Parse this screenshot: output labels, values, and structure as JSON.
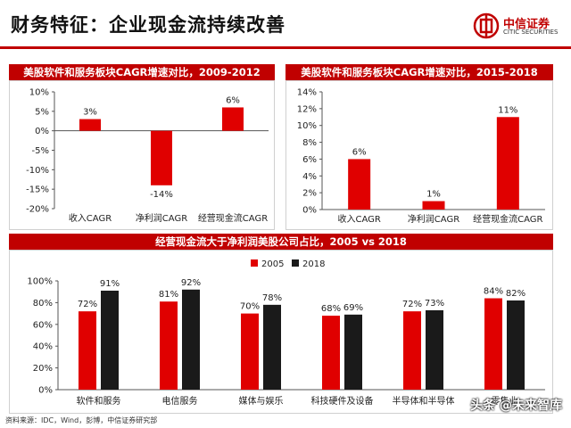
{
  "page": {
    "title": "财务特征：企业现金流持续改善",
    "source": "资料来源：IDC，Wind，彭博，中信证券研究部",
    "watermark": "头条 @未来智库"
  },
  "brand": {
    "name": "中信证券",
    "sub": "CITIC SECURITIES",
    "color": "#c00000"
  },
  "colors": {
    "red": "#e00000",
    "black": "#1a1a1a",
    "banner": "#c00000"
  },
  "chart_data": [
    {
      "type": "bar",
      "title": "美股软件和服务板块CAGR增速对比，2009-2012",
      "categories": [
        "收入CAGR",
        "净利润CAGR",
        "经营现金流CAGR"
      ],
      "values": [
        3,
        -14,
        6
      ],
      "value_labels": [
        "3%",
        "-14%",
        "6%"
      ],
      "ylim": [
        -20,
        10
      ],
      "yticks": [
        10,
        5,
        0,
        -5,
        -10,
        -15,
        -20
      ],
      "ytick_labels": [
        "10%",
        "5%",
        "0%",
        "-5%",
        "-10%",
        "-15%",
        "-20%"
      ],
      "grid": false,
      "color": "#e00000"
    },
    {
      "type": "bar",
      "title": "美股软件和服务板块CAGR增速对比，2015-2018",
      "categories": [
        "收入CAGR",
        "净利润CAGR",
        "经营现金流CAGR"
      ],
      "values": [
        6,
        1,
        11
      ],
      "value_labels": [
        "6%",
        "1%",
        "11%"
      ],
      "ylim": [
        0,
        14
      ],
      "yticks": [
        14,
        12,
        10,
        8,
        6,
        4,
        2,
        0
      ],
      "ytick_labels": [
        "14%",
        "12%",
        "10%",
        "8%",
        "6%",
        "4%",
        "2%",
        "0%"
      ],
      "grid": false,
      "color": "#e00000"
    },
    {
      "type": "bar",
      "title": "经营现金流大于净利润美股公司占比，2005 vs 2018",
      "categories": [
        "软件和服务",
        "电信服务",
        "媒体与娱乐",
        "科技硬件及设备",
        "半导体和半导体设备",
        ""
      ],
      "category_labels_shown": [
        "软件和服务",
        "电信服务",
        "媒体与娱乐",
        "科技硬件及设备",
        "半导体和半导体",
        "零售业"
      ],
      "series": [
        {
          "name": "2005",
          "values": [
            72,
            81,
            70,
            68,
            72,
            84
          ],
          "labels": [
            "72%",
            "81%",
            "70%",
            "68%",
            "72%",
            "84%"
          ],
          "color": "#e00000"
        },
        {
          "name": "2018",
          "values": [
            91,
            92,
            78,
            69,
            73,
            82
          ],
          "labels": [
            "91%",
            "92%",
            "78%",
            "69%",
            "73%",
            "82%"
          ],
          "color": "#1a1a1a"
        }
      ],
      "ylim": [
        0,
        100
      ],
      "yticks": [
        100,
        80,
        60,
        40,
        20,
        0
      ],
      "ytick_labels": [
        "100%",
        "80%",
        "60%",
        "40%",
        "20%",
        "0%"
      ],
      "legend": "top",
      "grid": false
    }
  ]
}
